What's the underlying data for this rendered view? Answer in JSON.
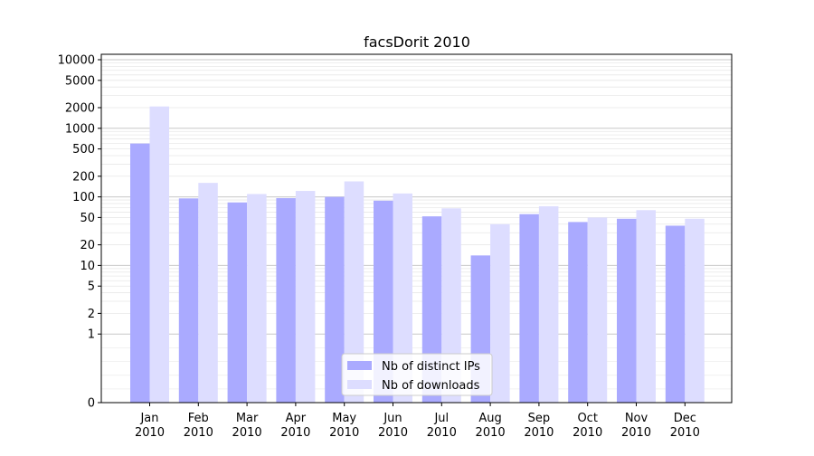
{
  "chart_data": {
    "type": "bar",
    "title": "facsDorit 2010",
    "xlabel": "",
    "ylabel": "",
    "y_scale": "symlog",
    "ylim": [
      0,
      12000
    ],
    "yticks": [
      0,
      1,
      2,
      5,
      10,
      20,
      50,
      100,
      200,
      500,
      1000,
      2000,
      5000,
      10000
    ],
    "categories": [
      [
        "Jan",
        "2010"
      ],
      [
        "Feb",
        "2010"
      ],
      [
        "Mar",
        "2010"
      ],
      [
        "Apr",
        "2010"
      ],
      [
        "May",
        "2010"
      ],
      [
        "Jun",
        "2010"
      ],
      [
        "Jul",
        "2010"
      ],
      [
        "Aug",
        "2010"
      ],
      [
        "Sep",
        "2010"
      ],
      [
        "Oct",
        "2010"
      ],
      [
        "Nov",
        "2010"
      ],
      [
        "Dec",
        "2010"
      ]
    ],
    "series": [
      {
        "name": "Nb of distinct IPs",
        "color": "#aaaaff",
        "values": [
          600,
          95,
          83,
          96,
          100,
          88,
          52,
          14,
          56,
          43,
          48,
          38
        ]
      },
      {
        "name": "Nb of downloads",
        "color": "#ddddff",
        "values": [
          2080,
          160,
          110,
          122,
          168,
          112,
          68,
          40,
          73,
          50,
          64,
          48
        ]
      }
    ],
    "grid": true,
    "legend": "lower-center"
  }
}
